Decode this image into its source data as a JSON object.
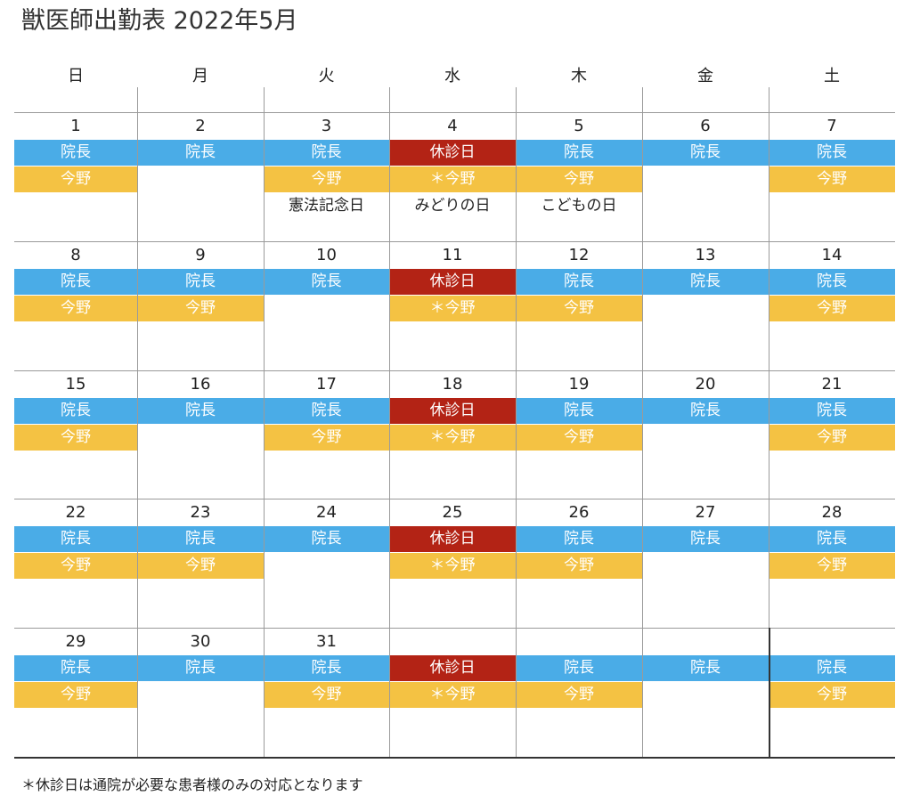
{
  "title": "獣医師出勤表 2022年5月",
  "weekdays": [
    "日",
    "月",
    "火",
    "水",
    "木",
    "金",
    "土"
  ],
  "colors": {
    "director": "#4aace7",
    "closed": "#b32315",
    "doctor": "#f4c243"
  },
  "weeks": [
    [
      {
        "date": "1",
        "bar1": "院長",
        "bar1_type": "blue",
        "bar2": "今野",
        "bar2_type": "yellow",
        "note": ""
      },
      {
        "date": "2",
        "bar1": "院長",
        "bar1_type": "blue",
        "bar2": "",
        "bar2_type": "",
        "note": ""
      },
      {
        "date": "3",
        "bar1": "院長",
        "bar1_type": "blue",
        "bar2": "今野",
        "bar2_type": "yellow",
        "note": "憲法記念日"
      },
      {
        "date": "4",
        "bar1": "休診日",
        "bar1_type": "red",
        "bar2": "＊今野",
        "bar2_type": "yellow",
        "note": "みどりの日"
      },
      {
        "date": "5",
        "bar1": "院長",
        "bar1_type": "blue",
        "bar2": "今野",
        "bar2_type": "yellow",
        "note": "こどもの日"
      },
      {
        "date": "6",
        "bar1": "院長",
        "bar1_type": "blue",
        "bar2": "",
        "bar2_type": "",
        "note": ""
      },
      {
        "date": "7",
        "bar1": "院長",
        "bar1_type": "blue",
        "bar2": "今野",
        "bar2_type": "yellow",
        "note": ""
      }
    ],
    [
      {
        "date": "8",
        "bar1": "院長",
        "bar1_type": "blue",
        "bar2": "今野",
        "bar2_type": "yellow",
        "note": ""
      },
      {
        "date": "9",
        "bar1": "院長",
        "bar1_type": "blue",
        "bar2": "今野",
        "bar2_type": "yellow",
        "note": ""
      },
      {
        "date": "10",
        "bar1": "院長",
        "bar1_type": "blue",
        "bar2": "",
        "bar2_type": "",
        "note": ""
      },
      {
        "date": "11",
        "bar1": "休診日",
        "bar1_type": "red",
        "bar2": "＊今野",
        "bar2_type": "yellow",
        "note": ""
      },
      {
        "date": "12",
        "bar1": "院長",
        "bar1_type": "blue",
        "bar2": "今野",
        "bar2_type": "yellow",
        "note": ""
      },
      {
        "date": "13",
        "bar1": "院長",
        "bar1_type": "blue",
        "bar2": "",
        "bar2_type": "",
        "note": ""
      },
      {
        "date": "14",
        "bar1": "院長",
        "bar1_type": "blue",
        "bar2": "今野",
        "bar2_type": "yellow",
        "note": ""
      }
    ],
    [
      {
        "date": "15",
        "bar1": "院長",
        "bar1_type": "blue",
        "bar2": "今野",
        "bar2_type": "yellow",
        "note": ""
      },
      {
        "date": "16",
        "bar1": "院長",
        "bar1_type": "blue",
        "bar2": "",
        "bar2_type": "",
        "note": ""
      },
      {
        "date": "17",
        "bar1": "院長",
        "bar1_type": "blue",
        "bar2": "今野",
        "bar2_type": "yellow",
        "note": ""
      },
      {
        "date": "18",
        "bar1": "休診日",
        "bar1_type": "red",
        "bar2": "＊今野",
        "bar2_type": "yellow",
        "note": ""
      },
      {
        "date": "19",
        "bar1": "院長",
        "bar1_type": "blue",
        "bar2": "今野",
        "bar2_type": "yellow",
        "note": ""
      },
      {
        "date": "20",
        "bar1": "院長",
        "bar1_type": "blue",
        "bar2": "",
        "bar2_type": "",
        "note": ""
      },
      {
        "date": "21",
        "bar1": "院長",
        "bar1_type": "blue",
        "bar2": "今野",
        "bar2_type": "yellow",
        "note": ""
      }
    ],
    [
      {
        "date": "22",
        "bar1": "院長",
        "bar1_type": "blue",
        "bar2": "今野",
        "bar2_type": "yellow",
        "note": ""
      },
      {
        "date": "23",
        "bar1": "院長",
        "bar1_type": "blue",
        "bar2": "今野",
        "bar2_type": "yellow",
        "note": ""
      },
      {
        "date": "24",
        "bar1": "院長",
        "bar1_type": "blue",
        "bar2": "",
        "bar2_type": "",
        "note": ""
      },
      {
        "date": "25",
        "bar1": "休診日",
        "bar1_type": "red",
        "bar2": "＊今野",
        "bar2_type": "yellow",
        "note": ""
      },
      {
        "date": "26",
        "bar1": "院長",
        "bar1_type": "blue",
        "bar2": "今野",
        "bar2_type": "yellow",
        "note": ""
      },
      {
        "date": "27",
        "bar1": "院長",
        "bar1_type": "blue",
        "bar2": "",
        "bar2_type": "",
        "note": ""
      },
      {
        "date": "28",
        "bar1": "院長",
        "bar1_type": "blue",
        "bar2": "今野",
        "bar2_type": "yellow",
        "note": ""
      }
    ],
    [
      {
        "date": "29",
        "bar1": "院長",
        "bar1_type": "blue",
        "bar2": "今野",
        "bar2_type": "yellow",
        "note": ""
      },
      {
        "date": "30",
        "bar1": "院長",
        "bar1_type": "blue",
        "bar2": "",
        "bar2_type": "",
        "note": ""
      },
      {
        "date": "31",
        "bar1": "院長",
        "bar1_type": "blue",
        "bar2": "今野",
        "bar2_type": "yellow",
        "note": ""
      },
      {
        "date": "",
        "bar1": "休診日",
        "bar1_type": "red",
        "bar2": "＊今野",
        "bar2_type": "yellow",
        "note": ""
      },
      {
        "date": "",
        "bar1": "院長",
        "bar1_type": "blue",
        "bar2": "今野",
        "bar2_type": "yellow",
        "note": ""
      },
      {
        "date": "",
        "bar1": "院長",
        "bar1_type": "blue",
        "bar2": "",
        "bar2_type": "",
        "note": ""
      },
      {
        "date": "",
        "bar1": "院長",
        "bar1_type": "blue",
        "bar2": "今野",
        "bar2_type": "yellow",
        "note": ""
      }
    ]
  ],
  "footnote": "＊休診日は通院が必要な患者様のみの対応となります"
}
